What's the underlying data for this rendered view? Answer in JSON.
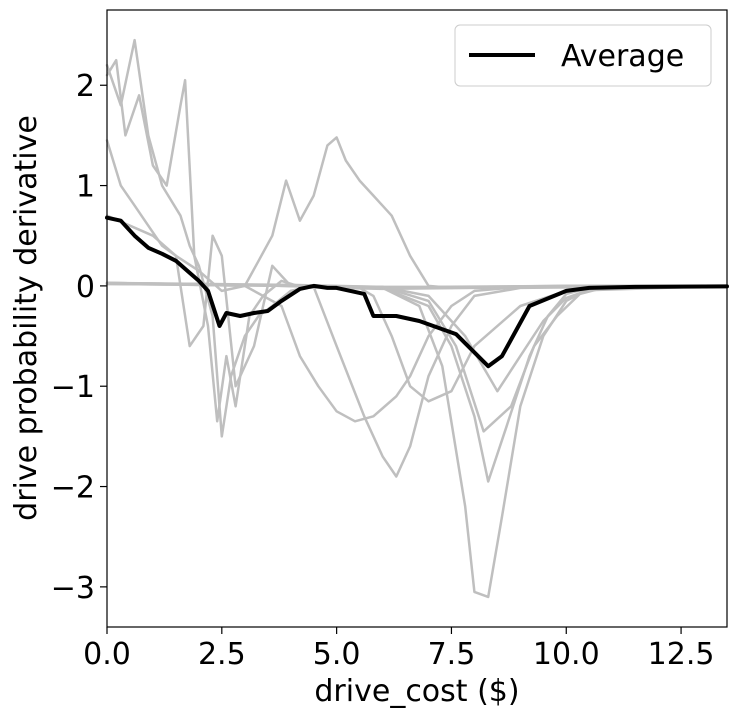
{
  "chart_data": {
    "type": "line",
    "xlabel": "drive_cost ($)",
    "ylabel": "drive probability derivative",
    "xlim": [
      0,
      13.5
    ],
    "ylim": [
      -3.4,
      2.75
    ],
    "xticks": [
      0,
      2.5,
      5,
      7.5,
      10,
      12.5
    ],
    "xtick_labels": [
      "0.0",
      "2.5",
      "5.0",
      "7.5",
      "10.0",
      "12.5"
    ],
    "yticks": [
      -3,
      -2,
      -1,
      0,
      1,
      2
    ],
    "ytick_labels": [
      "−3",
      "−2",
      "−1",
      "0",
      "1",
      "2"
    ],
    "grid": false,
    "legend": {
      "position": "top-right",
      "entries": [
        "Average"
      ]
    },
    "colors": {
      "individual": "#bfbfbf",
      "average": "#000000"
    },
    "series": [
      {
        "name": "Average",
        "x": [
          0,
          0.3,
          0.6,
          0.9,
          1.2,
          1.5,
          1.8,
          2.0,
          2.2,
          2.45,
          2.6,
          2.9,
          3.2,
          3.5,
          3.8,
          4.2,
          4.5,
          4.8,
          5.0,
          5.3,
          5.6,
          5.8,
          6.3,
          6.8,
          7.6,
          8.3,
          8.6,
          9.2,
          10.0,
          10.5,
          11.5,
          13.5
        ],
        "y": [
          0.68,
          0.65,
          0.5,
          0.38,
          0.32,
          0.25,
          0.13,
          0.05,
          -0.05,
          -0.4,
          -0.27,
          -0.3,
          -0.27,
          -0.25,
          -0.15,
          -0.03,
          0.0,
          -0.02,
          -0.02,
          -0.05,
          -0.08,
          -0.3,
          -0.3,
          -0.35,
          -0.48,
          -0.8,
          -0.7,
          -0.2,
          -0.05,
          -0.02,
          -0.01,
          -0.005
        ]
      },
      {
        "x": [
          0,
          0.3,
          0.6,
          0.9,
          1.2,
          1.6,
          1.8,
          2.0,
          2.3,
          2.5,
          2.7,
          3.0,
          3.3,
          3.6,
          4.0,
          4.5,
          5.0,
          6.0,
          8.0,
          10.0,
          13.5
        ],
        "y": [
          2.2,
          1.8,
          2.45,
          1.5,
          1.0,
          0.7,
          0.4,
          0.2,
          -0.3,
          -1.5,
          -0.9,
          -0.5,
          -0.3,
          -0.2,
          -0.05,
          0.0,
          -0.02,
          -0.03,
          -0.02,
          -0.01,
          0.0
        ]
      },
      {
        "x": [
          0,
          0.2,
          0.4,
          0.7,
          1.0,
          1.3,
          1.6,
          1.7,
          1.9,
          2.2,
          2.4,
          2.6,
          2.8,
          3.1,
          3.4,
          3.8,
          4.3,
          5.0,
          7.0,
          10.0,
          13.5
        ],
        "y": [
          2.1,
          2.25,
          1.5,
          1.9,
          1.2,
          1.0,
          1.8,
          2.05,
          0.3,
          -0.4,
          -1.35,
          -0.7,
          -1.2,
          -0.3,
          -0.1,
          0.05,
          -0.02,
          -0.01,
          -0.01,
          0.0,
          0.0
        ]
      },
      {
        "x": [
          0,
          0.3,
          0.6,
          0.9,
          1.2,
          1.5,
          1.8,
          2.1,
          2.3,
          2.5,
          2.8,
          3.2,
          3.6,
          4.0,
          4.5,
          5.0,
          6.0,
          8.0,
          13.5
        ],
        "y": [
          1.45,
          1.0,
          0.8,
          0.6,
          0.4,
          0.3,
          -0.6,
          -0.4,
          0.5,
          0.3,
          -1.0,
          -0.6,
          0.2,
          0.0,
          -0.01,
          -0.02,
          -0.02,
          -0.01,
          0.0
        ]
      },
      {
        "x": [
          0,
          0.5,
          1.0,
          1.5,
          2.0,
          2.5,
          3.0,
          3.3,
          3.6,
          3.9,
          4.2,
          4.5,
          4.8,
          5.0,
          5.2,
          5.5,
          5.8,
          6.2,
          6.6,
          7.0,
          7.5,
          8.0,
          10.0,
          13.5
        ],
        "y": [
          0.7,
          0.6,
          0.5,
          0.3,
          0.15,
          -0.05,
          0.0,
          0.25,
          0.5,
          1.05,
          0.65,
          0.9,
          1.4,
          1.48,
          1.25,
          1.05,
          0.9,
          0.7,
          0.3,
          0.0,
          -0.02,
          -0.01,
          0.0,
          0.0
        ]
      },
      {
        "x": [
          0,
          1.0,
          2.0,
          3.0,
          3.8,
          4.2,
          4.6,
          5.0,
          5.4,
          5.8,
          6.3,
          6.6,
          7.0,
          7.5,
          8.0,
          9.0,
          10.0,
          13.5
        ],
        "y": [
          0.02,
          0.02,
          0.01,
          0.0,
          -0.2,
          -0.7,
          -1.0,
          -1.25,
          -1.35,
          -1.3,
          -1.1,
          -0.9,
          -0.5,
          -0.2,
          -0.05,
          -0.01,
          0.0,
          0.0
        ]
      },
      {
        "x": [
          0,
          1.5,
          3.0,
          4.5,
          5.0,
          5.6,
          6.0,
          6.3,
          6.6,
          7.0,
          7.5,
          8.0,
          9.0,
          13.5
        ],
        "y": [
          0.03,
          0.02,
          0.01,
          -0.01,
          -0.6,
          -1.3,
          -1.7,
          -1.9,
          -1.6,
          -0.9,
          -0.4,
          -0.1,
          -0.02,
          0.0
        ]
      },
      {
        "x": [
          0,
          2.0,
          4.0,
          5.5,
          5.8,
          6.2,
          6.6,
          7.0,
          7.5,
          8.0,
          9.0,
          10.0,
          13.5
        ],
        "y": [
          0.02,
          0.02,
          0.0,
          -0.02,
          -0.1,
          -0.5,
          -1.0,
          -1.15,
          -1.05,
          -0.6,
          -0.2,
          -0.05,
          0.0
        ]
      },
      {
        "x": [
          0,
          1.5,
          3.0,
          4.5,
          6.0,
          6.8,
          7.3,
          7.8,
          8.0,
          8.3,
          8.6,
          9.0,
          9.5,
          10.0,
          10.5,
          13.5
        ],
        "y": [
          0.03,
          0.02,
          0.01,
          0.0,
          -0.02,
          -0.2,
          -0.8,
          -2.2,
          -3.05,
          -3.1,
          -2.3,
          -1.2,
          -0.5,
          -0.15,
          -0.03,
          0.0
        ]
      },
      {
        "x": [
          0,
          2.0,
          4.0,
          6.0,
          7.0,
          7.5,
          8.0,
          8.3,
          8.7,
          9.2,
          9.6,
          10.0,
          10.5,
          13.5
        ],
        "y": [
          0.02,
          0.01,
          0.0,
          -0.02,
          -0.2,
          -0.6,
          -1.3,
          -1.95,
          -1.4,
          -0.7,
          -0.3,
          -0.08,
          -0.02,
          0.0
        ]
      },
      {
        "x": [
          0,
          2.0,
          4.0,
          6.0,
          7.0,
          7.6,
          8.2,
          8.8,
          9.3,
          9.8,
          10.3,
          10.8,
          13.5
        ],
        "y": [
          0.02,
          0.01,
          0.0,
          -0.01,
          -0.15,
          -0.6,
          -1.45,
          -1.2,
          -0.6,
          -0.3,
          -0.08,
          -0.02,
          0.0
        ]
      },
      {
        "x": [
          0,
          2.0,
          4.0,
          6.0,
          7.0,
          7.8,
          8.5,
          9.0,
          9.5,
          10.0,
          10.5,
          11.0,
          13.5
        ],
        "y": [
          0.03,
          0.02,
          0.01,
          -0.01,
          -0.1,
          -0.5,
          -1.05,
          -0.7,
          -0.35,
          -0.12,
          -0.04,
          -0.01,
          0.0
        ]
      }
    ]
  }
}
